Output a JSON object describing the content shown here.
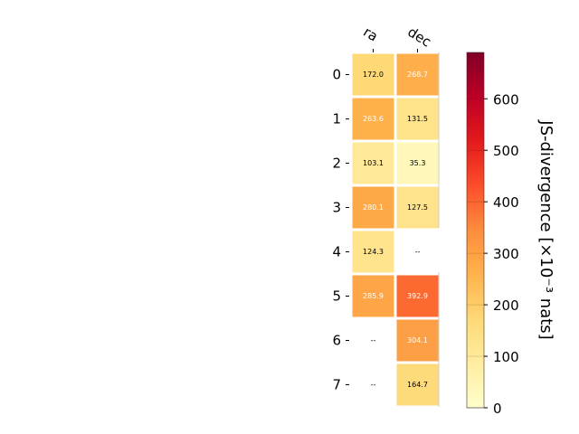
{
  "chart_data": {
    "type": "heatmap",
    "columns": [
      "ra",
      "dec"
    ],
    "rows": [
      "0",
      "1",
      "2",
      "3",
      "4",
      "5",
      "6",
      "7"
    ],
    "values": [
      [
        172.0,
        268.7
      ],
      [
        263.6,
        131.5
      ],
      [
        103.1,
        35.3
      ],
      [
        280.1,
        127.5
      ],
      [
        124.3,
        null
      ],
      [
        285.9,
        392.9
      ],
      [
        null,
        304.1
      ],
      [
        null,
        164.7
      ]
    ],
    "missing_label": "--",
    "colorbar": {
      "label": "JS-divergence [×10⁻³ nats]",
      "range": [
        0,
        690
      ],
      "ticks": [
        0,
        100,
        200,
        300,
        400,
        500,
        600
      ],
      "colormap": "YlOrRd"
    }
  }
}
